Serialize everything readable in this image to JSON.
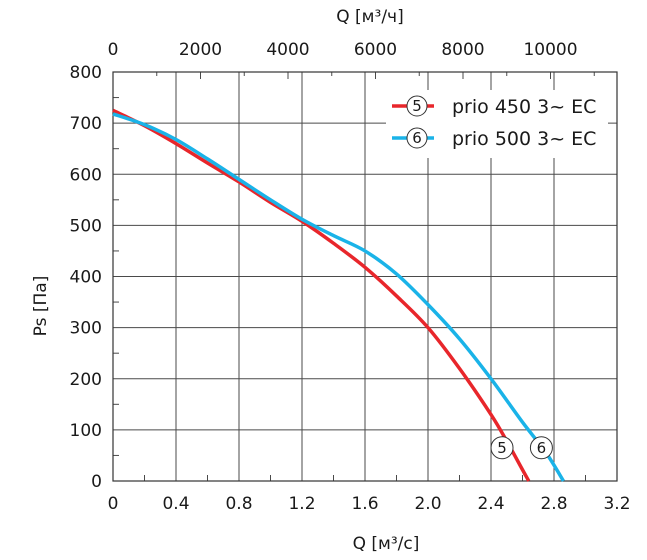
{
  "chart_data": {
    "type": "line",
    "xlabel_bottom": "Q [м³/с]",
    "xlabel_top": "Q [м³/ч]",
    "ylabel": "Ps [Па]",
    "xlim": [
      0,
      3.2
    ],
    "ylim": [
      0,
      800
    ],
    "x2lim": [
      0,
      11520
    ],
    "x_ticks": [
      "0",
      "0.4",
      "0.8",
      "1.2",
      "1.6",
      "2.0",
      "2.4",
      "2.8",
      "3.2"
    ],
    "x_tick_values": [
      0,
      0.4,
      0.8,
      1.2,
      1.6,
      2.0,
      2.4,
      2.8,
      3.2
    ],
    "x2_ticks": [
      "0",
      "2000",
      "4000",
      "6000",
      "8000",
      "10000"
    ],
    "x2_tick_values": [
      0,
      2000,
      4000,
      6000,
      8000,
      10000
    ],
    "y_ticks": [
      "0",
      "100",
      "200",
      "300",
      "400",
      "500",
      "600",
      "700",
      "800"
    ],
    "y_tick_values": [
      0,
      100,
      200,
      300,
      400,
      500,
      600,
      700,
      800
    ],
    "grid": true,
    "legend_position": "top-right",
    "series": [
      {
        "name": "prio 450 3~ EC",
        "marker": "5",
        "color": "#e8262b",
        "marker_at": [
          2.47,
          65
        ],
        "x": [
          0,
          0.2,
          0.4,
          0.6,
          0.8,
          1.0,
          1.2,
          1.4,
          1.6,
          1.8,
          2.0,
          2.2,
          2.4,
          2.5,
          2.6,
          2.64
        ],
        "y": [
          725,
          695,
          660,
          622,
          585,
          545,
          508,
          465,
          418,
          362,
          300,
          220,
          130,
          78,
          22,
          0
        ]
      },
      {
        "name": "prio 500 3~ EC",
        "marker": "6",
        "color": "#1ab3e8",
        "marker_at": [
          2.72,
          65
        ],
        "x": [
          0,
          0.2,
          0.4,
          0.6,
          0.8,
          1.0,
          1.2,
          1.4,
          1.6,
          1.8,
          2.0,
          2.2,
          2.4,
          2.6,
          2.75,
          2.86
        ],
        "y": [
          718,
          697,
          668,
          630,
          590,
          550,
          512,
          480,
          450,
          405,
          345,
          278,
          200,
          115,
          55,
          0
        ]
      }
    ]
  }
}
